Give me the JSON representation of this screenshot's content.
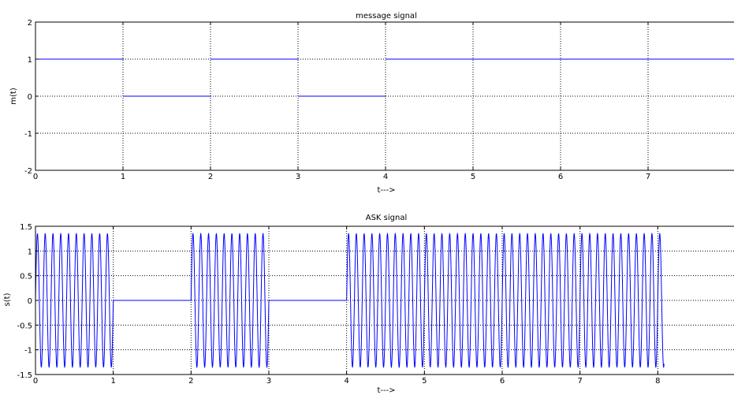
{
  "chart_data": [
    {
      "type": "line",
      "title": "message signal",
      "xlabel": "t--->",
      "ylabel": "m(t)",
      "xlim": [
        0,
        8
      ],
      "ylim": [
        -2,
        2
      ],
      "xticks": [
        0,
        1,
        2,
        3,
        4,
        5,
        6,
        7
      ],
      "yticks": [
        2,
        1,
        0,
        -1,
        -2
      ],
      "xtick_labels": [
        "0",
        "1",
        "2",
        "3",
        "4",
        "5",
        "6",
        "7"
      ],
      "ytick_labels": [
        "2",
        "1",
        "0",
        "-1",
        "-2"
      ],
      "grid": true,
      "color": "#0000ff",
      "series": [
        {
          "segments": [
            {
              "x": [
                0,
                1
              ],
              "y": [
                1,
                1
              ]
            },
            {
              "x": [
                1,
                2
              ],
              "y": [
                0,
                0
              ]
            },
            {
              "x": [
                2,
                3
              ],
              "y": [
                1,
                1
              ]
            },
            {
              "x": [
                3,
                4
              ],
              "y": [
                0,
                0
              ]
            },
            {
              "x": [
                4,
                8
              ],
              "y": [
                1,
                1
              ]
            }
          ]
        }
      ],
      "bits": [
        1,
        0,
        1,
        0,
        1,
        1,
        1,
        1
      ]
    },
    {
      "type": "line",
      "title": "ASK signal",
      "xlabel": "t--->",
      "ylabel": "s(t)",
      "xlim": [
        0,
        9
      ],
      "ylim": [
        -1.5,
        1.5
      ],
      "xticks": [
        0,
        1,
        2,
        3,
        4,
        5,
        6,
        7,
        8
      ],
      "yticks": [
        1.5,
        1,
        0.5,
        0,
        -0.5,
        -1,
        -1.5
      ],
      "xtick_labels": [
        "0",
        "1",
        "2",
        "3",
        "4",
        "5",
        "6",
        "7",
        "8"
      ],
      "ytick_labels": [
        "1.5",
        "1",
        "0.5",
        "0",
        "-0.5",
        "-1",
        "-1.5"
      ],
      "grid": true,
      "color": "#0000ff",
      "bits": [
        1,
        0,
        1,
        0,
        1,
        1,
        1,
        1
      ],
      "bit_duration": 1,
      "amplitude": 1.35,
      "cycles_per_bit": 10,
      "t_end": 8.08
    }
  ]
}
